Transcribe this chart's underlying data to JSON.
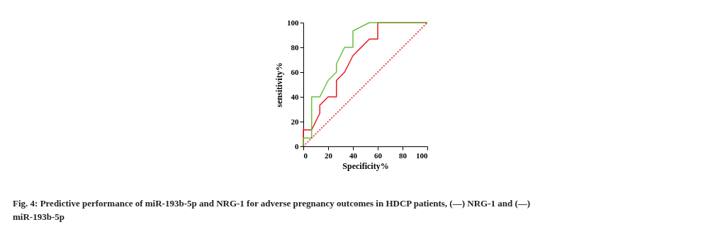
{
  "chart_data": {
    "type": "step",
    "xlabel": "Specificity%",
    "ylabel": "sensitivity%",
    "xlim": [
      0,
      100
    ],
    "ylim": [
      0,
      100
    ],
    "xticks": [
      0,
      20,
      40,
      60,
      80,
      100
    ],
    "yticks": [
      0,
      20,
      40,
      60,
      80,
      100
    ],
    "grid": false,
    "series": [
      {
        "color": "#e8191f",
        "x": [
          0,
          0,
          6.7,
          13.3,
          13.3,
          20,
          26.7,
          26.7,
          33.3,
          40,
          53.3,
          60,
          60,
          100
        ],
        "values": [
          0,
          13.3,
          13.3,
          26.7,
          33.3,
          40,
          40,
          53.3,
          60,
          73.3,
          86.7,
          86.7,
          100,
          100
        ]
      },
      {
        "color": "#6abf3f",
        "x": [
          0,
          0,
          6.7,
          6.7,
          13.3,
          20,
          26.7,
          26.7,
          33.3,
          40,
          40,
          53.3,
          100
        ],
        "values": [
          0,
          6.7,
          6.7,
          40,
          40,
          53.3,
          60,
          66.7,
          80,
          80,
          93.3,
          100,
          100
        ]
      },
      {
        "type": "line",
        "color": "#e8191f",
        "line_style": "dotted",
        "x": [
          0,
          100
        ],
        "values": [
          0,
          100
        ]
      }
    ],
    "annotations": [
      "Fig. 4: Predictive performance of miR-193b-5p and NRG-1 for adverse pregnancy outcomes in HDCP patients, (—) NRG-1 and (—) miR-193b-5p"
    ]
  }
}
